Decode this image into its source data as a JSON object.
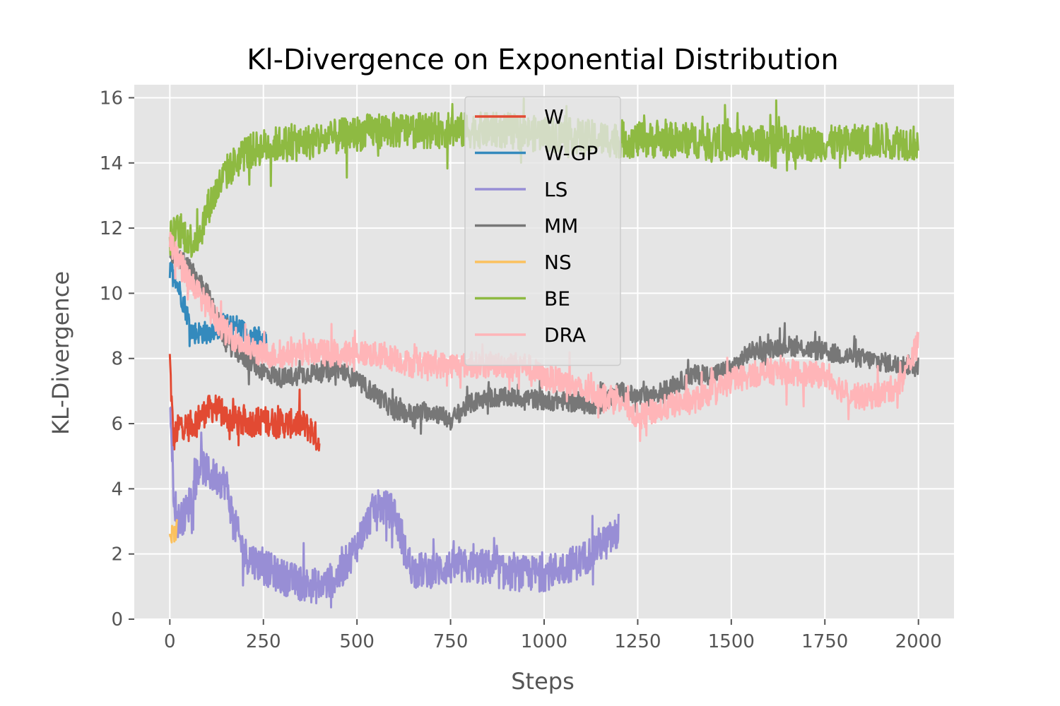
{
  "chart_data": {
    "type": "line",
    "title": "Kl-Divergence on Exponential Distribution",
    "xlabel": "Steps",
    "ylabel": "KL-Divergence",
    "xlim": [
      -95,
      2095
    ],
    "ylim": [
      0,
      16.4
    ],
    "xticks": [
      0,
      250,
      500,
      750,
      1000,
      1250,
      1500,
      1750,
      2000
    ],
    "yticks": [
      0,
      2,
      4,
      6,
      8,
      10,
      12,
      14,
      16
    ],
    "grid": true,
    "legend_position": "upper-center",
    "series": [
      {
        "name": "W",
        "color": "#E24A33",
        "noise": 0.45,
        "x": [
          0,
          5,
          10,
          20,
          30,
          50,
          70,
          100,
          120,
          150,
          200,
          250,
          300,
          350,
          380,
          400
        ],
        "y": [
          8.0,
          6.6,
          5.5,
          5.8,
          6.0,
          5.9,
          6.1,
          6.4,
          6.5,
          6.2,
          6.0,
          6.1,
          6.0,
          6.0,
          5.8,
          5.4
        ]
      },
      {
        "name": "W-GP",
        "color": "#348ABD",
        "noise": 0.35,
        "x": [
          0,
          20,
          40,
          60,
          80,
          100,
          120,
          150,
          180,
          200,
          230,
          260
        ],
        "y": [
          10.8,
          10.3,
          9.6,
          8.8,
          8.8,
          8.8,
          8.9,
          9.0,
          9.0,
          8.8,
          8.6,
          8.5
        ]
      },
      {
        "name": "LS",
        "color": "#988ED5",
        "noise": 0.55,
        "x": [
          0,
          10,
          20,
          40,
          60,
          80,
          100,
          130,
          150,
          170,
          200,
          250,
          300,
          350,
          400,
          450,
          500,
          550,
          600,
          630,
          650,
          700,
          750,
          800,
          850,
          900,
          950,
          1000,
          1050,
          1100,
          1150,
          1200
        ],
        "y": [
          6.8,
          4.0,
          3.0,
          3.2,
          3.8,
          4.8,
          4.5,
          4.3,
          4.2,
          3.0,
          2.0,
          1.6,
          1.3,
          1.1,
          1.0,
          1.3,
          2.3,
          3.5,
          3.3,
          2.0,
          1.5,
          1.5,
          1.6,
          1.6,
          1.6,
          1.4,
          1.4,
          1.4,
          1.6,
          1.8,
          2.3,
          2.6
        ]
      },
      {
        "name": "MM",
        "color": "#777777",
        "noise": 0.3,
        "x": [
          0,
          50,
          100,
          150,
          200,
          250,
          300,
          350,
          400,
          450,
          500,
          550,
          600,
          650,
          700,
          750,
          800,
          850,
          900,
          950,
          1000,
          1050,
          1100,
          1150,
          1200,
          1250,
          1300,
          1350,
          1400,
          1450,
          1500,
          1550,
          1600,
          1650,
          1700,
          1750,
          1800,
          1850,
          1900,
          1950,
          2000
        ],
        "y": [
          11.3,
          10.8,
          10.0,
          8.5,
          8.0,
          7.6,
          7.4,
          7.5,
          7.6,
          7.7,
          7.3,
          6.9,
          6.4,
          6.3,
          6.4,
          6.1,
          6.6,
          6.8,
          6.8,
          6.8,
          6.7,
          6.7,
          6.6,
          6.6,
          7.0,
          6.8,
          6.9,
          7.2,
          7.5,
          7.5,
          7.7,
          8.2,
          8.3,
          8.4,
          8.3,
          8.2,
          8.1,
          8.0,
          7.9,
          7.8,
          7.8
        ]
      },
      {
        "name": "NS",
        "color": "#FBC15E",
        "noise": 0.25,
        "x": [
          0,
          5,
          10,
          15,
          20
        ],
        "y": [
          2.4,
          2.6,
          2.9,
          2.5,
          3.0
        ]
      },
      {
        "name": "BE",
        "color": "#8EBA42",
        "noise": 0.55,
        "x": [
          0,
          20,
          40,
          60,
          80,
          100,
          150,
          200,
          250,
          300,
          350,
          400,
          450,
          500,
          550,
          600,
          650,
          700,
          750,
          800,
          850,
          900,
          950,
          1000,
          1100,
          1200,
          1300,
          1400,
          1500,
          1600,
          1700,
          1800,
          1900,
          2000
        ],
        "y": [
          11.7,
          11.9,
          11.8,
          11.6,
          11.8,
          12.6,
          13.7,
          14.3,
          14.5,
          14.6,
          14.6,
          14.7,
          14.8,
          14.9,
          15.0,
          15.0,
          15.0,
          15.0,
          15.0,
          15.0,
          15.0,
          15.0,
          14.9,
          14.9,
          14.8,
          14.7,
          14.7,
          14.7,
          14.6,
          14.6,
          14.6,
          14.6,
          14.7,
          14.6
        ]
      },
      {
        "name": "DRA",
        "color": "#FFB5B8",
        "noise": 0.4,
        "x": [
          0,
          50,
          100,
          150,
          200,
          250,
          300,
          350,
          400,
          450,
          500,
          550,
          600,
          650,
          700,
          750,
          800,
          850,
          900,
          950,
          1000,
          1050,
          1100,
          1150,
          1200,
          1250,
          1300,
          1350,
          1400,
          1450,
          1500,
          1550,
          1600,
          1650,
          1700,
          1750,
          1800,
          1850,
          1900,
          1950,
          2000
        ],
        "y": [
          11.5,
          10.5,
          9.6,
          8.8,
          8.4,
          8.1,
          8.1,
          8.2,
          8.2,
          8.1,
          8.2,
          8.1,
          8.0,
          7.8,
          7.8,
          7.8,
          7.8,
          7.8,
          7.8,
          7.8,
          7.4,
          7.3,
          7.0,
          6.9,
          6.8,
          6.2,
          6.4,
          6.6,
          6.7,
          7.0,
          7.3,
          7.5,
          7.6,
          7.6,
          7.5,
          7.5,
          7.0,
          6.8,
          6.9,
          7.2,
          8.5
        ]
      }
    ]
  }
}
